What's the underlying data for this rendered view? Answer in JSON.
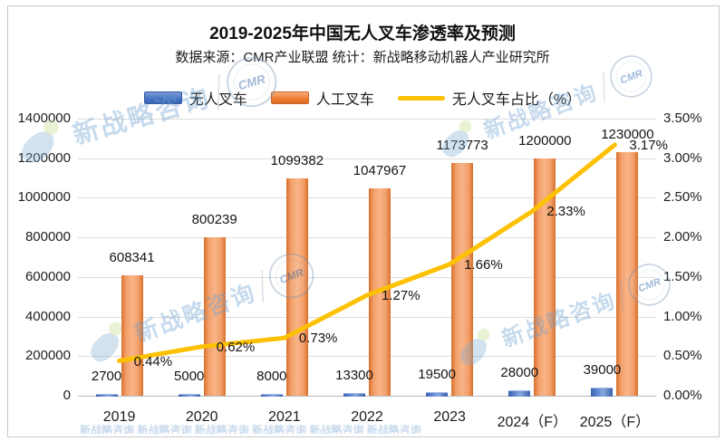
{
  "title": "2019-2025年中国无人叉车渗透率及预测",
  "subtitle": "数据来源：CMR产业联盟 统计：新战略移动机器人产业研究所",
  "legend": [
    {
      "label": "无人叉车",
      "color": "#4472c4",
      "type": "bar"
    },
    {
      "label": "人工叉车",
      "color": "#ed7d31",
      "type": "bar"
    },
    {
      "label": "无人叉车占比（%）",
      "color": "#fdc101",
      "type": "line"
    }
  ],
  "watermark": {
    "text": "新战略咨询",
    "stamp": "CMR",
    "bottom_band": "新战略咨询 新战略咨询 新战略咨询 新战略咨询 新战略咨询 新战略咨询"
  },
  "chart_data": {
    "type": "bar",
    "combo": "clustered bars + line on secondary axis",
    "title": "2019-2025年中国无人叉车渗透率及预测",
    "subtitle": "数据来源：CMR产业联盟 统计：新战略移动机器人产业研究所",
    "categories": [
      "2019",
      "2020",
      "2021",
      "2022",
      "2023",
      "2024（F）",
      "2025（F）"
    ],
    "series": [
      {
        "name": "无人叉车",
        "type": "bar",
        "axis": "left",
        "color": "#4472c4",
        "values": [
          2700,
          5000,
          8000,
          13300,
          19500,
          28000,
          39000
        ]
      },
      {
        "name": "人工叉车",
        "type": "bar",
        "axis": "left",
        "color": "#ed7d31",
        "values": [
          608341,
          800239,
          1099382,
          1047967,
          1173773,
          1200000,
          1230000
        ]
      },
      {
        "name": "无人叉车占比（%）",
        "type": "line",
        "axis": "right",
        "color": "#fdc101",
        "values": [
          0.44,
          0.62,
          0.73,
          1.27,
          1.66,
          2.33,
          3.17
        ],
        "labels": [
          "0.44%",
          "0.62%",
          "0.73%",
          "1.27%",
          "1.66%",
          "2.33%",
          "3.17%"
        ]
      }
    ],
    "left_axis": {
      "min": 0,
      "max": 1400000,
      "step": 200000,
      "ticks": [
        "0",
        "200000",
        "400000",
        "600000",
        "800000",
        "1000000",
        "1200000",
        "1400000"
      ]
    },
    "right_axis": {
      "min": 0,
      "max": 3.5,
      "step": 0.5,
      "ticks": [
        "0.00%",
        "0.50%",
        "1.00%",
        "1.50%",
        "2.00%",
        "2.50%",
        "3.00%",
        "3.50%"
      ]
    },
    "grid": "horizontal only",
    "legend_position": "top center"
  }
}
